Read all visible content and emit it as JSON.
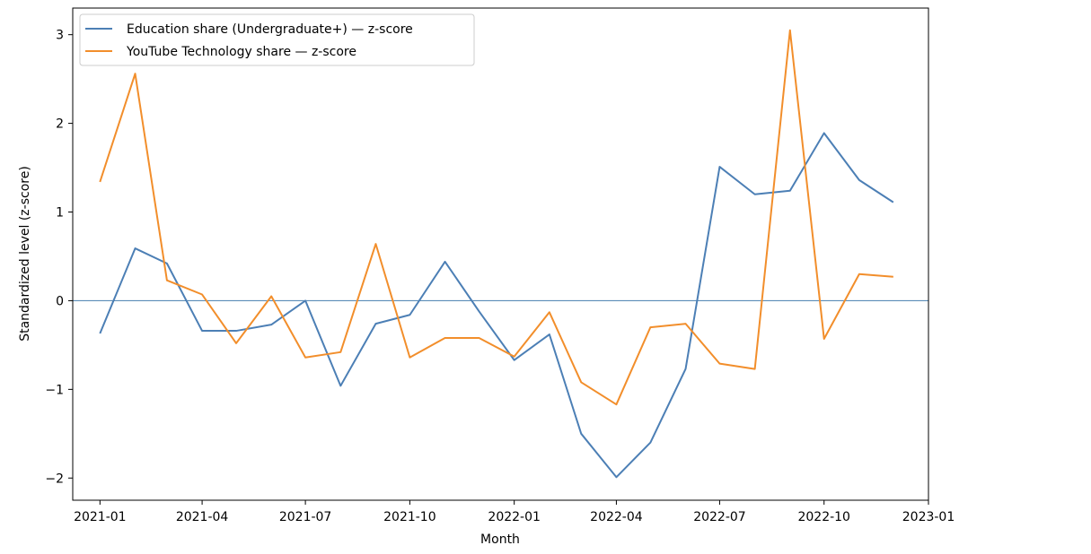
{
  "chart_data": {
    "type": "line",
    "title": "",
    "xlabel": "Month",
    "ylabel": "Standardized level (z-score)",
    "x": [
      "2021-01",
      "2021-02",
      "2021-03",
      "2021-04",
      "2021-05",
      "2021-06",
      "2021-07",
      "2021-08",
      "2021-09",
      "2021-10",
      "2021-11",
      "2021-12",
      "2022-01",
      "2022-02",
      "2022-03",
      "2022-04",
      "2022-05",
      "2022-06",
      "2022-07",
      "2022-08",
      "2022-09",
      "2022-10",
      "2022-11",
      "2022-12"
    ],
    "x_ticks": [
      "2021-01",
      "2021-04",
      "2021-07",
      "2021-10",
      "2022-01",
      "2022-04",
      "2022-07",
      "2022-10",
      "2023-01"
    ],
    "y_ticks": [
      -2,
      -1,
      0,
      1,
      2,
      3
    ],
    "y_tick_labels": [
      "−2",
      "−1",
      "0",
      "1",
      "2",
      "3"
    ],
    "xlim": [
      "2020-12-08",
      "2023-01-01"
    ],
    "ylim": [
      -2.25,
      3.3
    ],
    "reference_line": {
      "y": 0,
      "color": "#5b8db8"
    },
    "grid": false,
    "legend_position": "top-left",
    "series": [
      {
        "name": "Education share (Undergraduate+) — z-score",
        "color": "#4c7fb5",
        "values": [
          -0.37,
          0.59,
          0.42,
          -0.34,
          -0.34,
          -0.27,
          0.0,
          -0.96,
          -0.26,
          -0.16,
          0.44,
          -0.12,
          -0.67,
          -0.38,
          -1.5,
          -1.99,
          -1.6,
          -0.77,
          1.51,
          1.2,
          1.24,
          1.89,
          1.36,
          1.11
        ]
      },
      {
        "name": "YouTube Technology share — z-score",
        "color": "#f28e2b",
        "values": [
          1.34,
          2.56,
          0.23,
          0.07,
          -0.48,
          0.05,
          -0.64,
          -0.58,
          0.64,
          -0.64,
          -0.42,
          -0.42,
          -0.63,
          -0.13,
          -0.92,
          -1.17,
          -0.3,
          -0.26,
          -0.71,
          -0.77,
          3.05,
          -0.43,
          0.3,
          0.27
        ]
      }
    ]
  }
}
